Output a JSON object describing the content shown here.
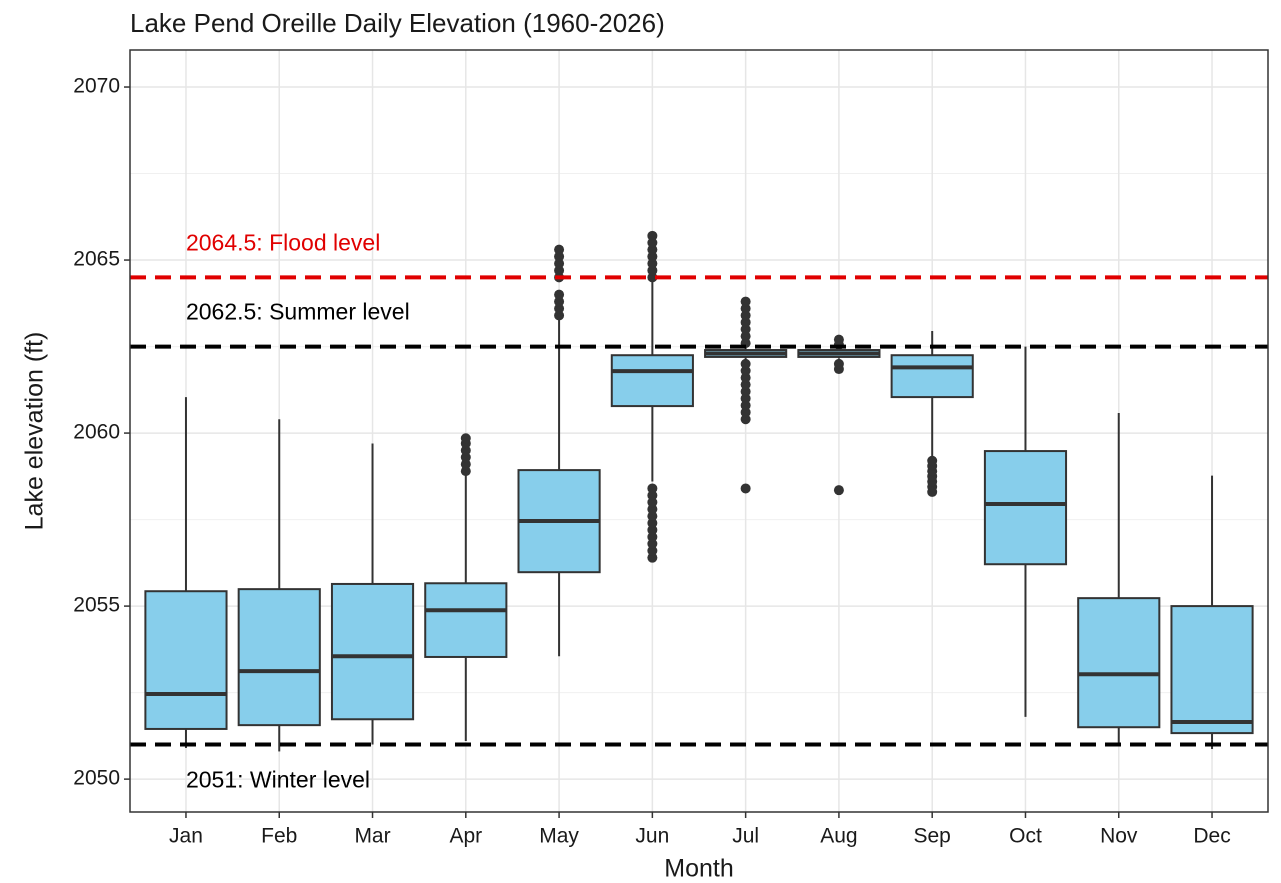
{
  "chart_data": {
    "type": "box",
    "title": "Lake Pend Oreille Daily Elevation (1960-2026)",
    "x_label": "Month",
    "y_label": "Lake elevation (ft)",
    "categories": [
      "Jan",
      "Feb",
      "Mar",
      "Apr",
      "May",
      "Jun",
      "Jul",
      "Aug",
      "Sep",
      "Oct",
      "Nov",
      "Dec"
    ],
    "boxes": [
      {
        "low": 2050.9,
        "q1": 2051.45,
        "median": 2052.46,
        "q3": 2055.43,
        "high": 2061.04,
        "outliers": []
      },
      {
        "low": 2050.8,
        "q1": 2051.56,
        "median": 2053.12,
        "q3": 2055.49,
        "high": 2060.4,
        "outliers": []
      },
      {
        "low": 2051.0,
        "q1": 2051.73,
        "median": 2053.55,
        "q3": 2055.64,
        "high": 2059.7,
        "outliers": []
      },
      {
        "low": 2051.1,
        "q1": 2053.53,
        "median": 2054.88,
        "q3": 2055.66,
        "high": 2058.8,
        "outliers": [
          2058.9,
          2059.1,
          2059.3,
          2059.5,
          2059.7,
          2059.85
        ]
      },
      {
        "low": 2053.55,
        "q1": 2055.98,
        "median": 2057.46,
        "q3": 2058.93,
        "high": 2063.3,
        "outliers": [
          2063.4,
          2063.6,
          2063.8,
          2064.0,
          2064.5,
          2064.7,
          2064.9,
          2065.1,
          2065.3
        ]
      },
      {
        "low": 2058.6,
        "q1": 2060.78,
        "median": 2061.79,
        "q3": 2062.25,
        "high": 2064.4,
        "outliers": [
          2056.4,
          2056.6,
          2056.8,
          2057.0,
          2057.2,
          2057.4,
          2057.6,
          2057.8,
          2058.0,
          2058.2,
          2058.4,
          2064.5,
          2064.7,
          2064.9,
          2065.1,
          2065.3,
          2065.5,
          2065.7
        ]
      },
      {
        "low": 2062.1,
        "q1": 2062.2,
        "median": 2062.3,
        "q3": 2062.4,
        "high": 2062.5,
        "outliers": [
          2058.4,
          2060.4,
          2060.6,
          2060.8,
          2061.0,
          2061.2,
          2061.4,
          2061.6,
          2061.8,
          2062.0,
          2062.6,
          2062.8,
          2063.0,
          2063.2,
          2063.4,
          2063.6,
          2063.8
        ]
      },
      {
        "low": 2062.15,
        "q1": 2062.2,
        "median": 2062.3,
        "q3": 2062.4,
        "high": 2062.45,
        "outliers": [
          2058.35,
          2061.85,
          2062.0,
          2062.55,
          2062.7
        ]
      },
      {
        "low": 2059.3,
        "q1": 2061.04,
        "median": 2061.9,
        "q3": 2062.25,
        "high": 2062.95,
        "outliers": [
          2058.3,
          2058.45,
          2058.6,
          2058.75,
          2058.9,
          2059.05,
          2059.2
        ]
      },
      {
        "low": 2051.8,
        "q1": 2056.21,
        "median": 2057.95,
        "q3": 2059.48,
        "high": 2062.5,
        "outliers": []
      },
      {
        "low": 2051.0,
        "q1": 2051.5,
        "median": 2053.03,
        "q3": 2055.23,
        "high": 2060.58,
        "outliers": []
      },
      {
        "low": 2050.87,
        "q1": 2051.33,
        "median": 2051.65,
        "q3": 2055.0,
        "high": 2058.77,
        "outliers": []
      }
    ],
    "color": "#87ceeb",
    "reference_lines": [
      {
        "value": 2064.5,
        "label": "2064.5: Flood level",
        "color": "#e00000"
      },
      {
        "value": 2062.5,
        "label": "2062.5: Summer level",
        "color": "#000000"
      },
      {
        "value": 2051,
        "label": "2051: Winter level",
        "color": "#000000"
      }
    ],
    "ylim": [
      2049.05,
      2071.07
    ],
    "yticks": [
      2050,
      2055,
      2060,
      2065,
      2070
    ],
    "grid": true
  }
}
